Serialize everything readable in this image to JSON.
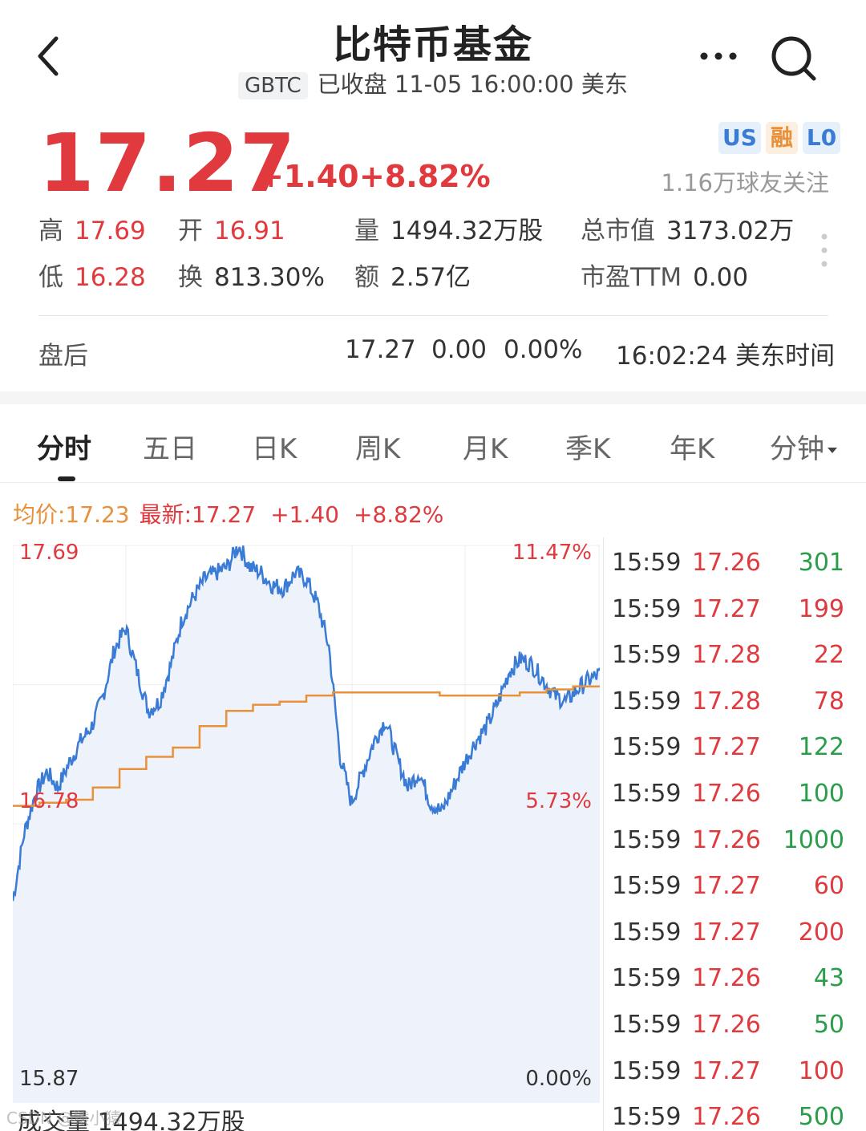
{
  "header": {
    "title": "比特币基金",
    "ticker": "GBTC",
    "status": "已收盘 11-05 16:00:00 美东"
  },
  "quote": {
    "price": "17.27",
    "change": "+1.40",
    "change_pct": "+8.82%",
    "badges": [
      "US",
      "融",
      "L0"
    ],
    "followers": "1.16万球友关注",
    "stats": {
      "high_label": "高",
      "high": "17.69",
      "open_label": "开",
      "open": "16.91",
      "volume_label": "量",
      "volume": "1494.32万股",
      "mktcap_label": "总市值",
      "mktcap": "3173.02万",
      "low_label": "低",
      "low": "16.28",
      "turnover_label": "换",
      "turnover": "813.30%",
      "amount_label": "额",
      "amount": "2.57亿",
      "pe_label": "市盈TTM",
      "pe": "0.00"
    }
  },
  "after_hours": {
    "label": "盘后",
    "price": "17.27",
    "change": "0.00",
    "change_pct": "0.00%",
    "time": "16:02:24 美东时间"
  },
  "tabs": [
    "分时",
    "五日",
    "日K",
    "周K",
    "月K",
    "季K",
    "年K",
    "分钟"
  ],
  "legend": {
    "avg": "均价:17.23",
    "latest_label": "最新:17.27",
    "latest_change": "+1.40",
    "latest_pct": "+8.82%"
  },
  "chart_data": {
    "type": "line",
    "y_labels_left": [
      "17.69",
      "16.78",
      "15.87"
    ],
    "y_labels_right": [
      "11.47%",
      "5.73%",
      "0.00%"
    ],
    "ylim": [
      15.87,
      17.69
    ],
    "series": [
      {
        "values": [
          16.53,
          16.75,
          16.88,
          16.95,
          16.9,
          16.98,
          17.05,
          17.1,
          17.2,
          17.35,
          17.42,
          17.28,
          17.15,
          17.18,
          17.3,
          17.45,
          17.52,
          17.58,
          17.6,
          17.62,
          17.69,
          17.62,
          17.6,
          17.56,
          17.55,
          17.6,
          17.58,
          17.5,
          17.36,
          17.0,
          16.85,
          16.95,
          17.05,
          17.12,
          17.0,
          16.9,
          16.95,
          16.85,
          16.82,
          16.9,
          16.98,
          17.05,
          17.1,
          17.18,
          17.28,
          17.32,
          17.3,
          17.25,
          17.2,
          17.18,
          17.22,
          17.25,
          17.27
        ]
      },
      {
        "values": [
          16.84,
          16.85,
          16.86,
          16.9,
          16.96,
          17.0,
          17.03,
          17.1,
          17.15,
          17.17,
          17.18,
          17.2,
          17.21,
          17.21,
          17.21,
          17.21,
          17.2,
          17.2,
          17.2,
          17.21,
          17.22,
          17.23
        ]
      }
    ]
  },
  "ticks": [
    {
      "time": "15:59",
      "price": "17.26",
      "vol": "301",
      "color": "green"
    },
    {
      "time": "15:59",
      "price": "17.27",
      "vol": "199",
      "color": "red"
    },
    {
      "time": "15:59",
      "price": "17.28",
      "vol": "22",
      "color": "red"
    },
    {
      "time": "15:59",
      "price": "17.28",
      "vol": "78",
      "color": "red"
    },
    {
      "time": "15:59",
      "price": "17.27",
      "vol": "122",
      "color": "green"
    },
    {
      "time": "15:59",
      "price": "17.26",
      "vol": "100",
      "color": "green"
    },
    {
      "time": "15:59",
      "price": "17.26",
      "vol": "1000",
      "color": "green"
    },
    {
      "time": "15:59",
      "price": "17.27",
      "vol": "60",
      "color": "red"
    },
    {
      "time": "15:59",
      "price": "17.27",
      "vol": "200",
      "color": "red"
    },
    {
      "time": "15:59",
      "price": "17.26",
      "vol": "43",
      "color": "green"
    },
    {
      "time": "15:59",
      "price": "17.26",
      "vol": "50",
      "color": "green"
    },
    {
      "time": "15:59",
      "price": "17.27",
      "vol": "100",
      "color": "red"
    },
    {
      "time": "15:59",
      "price": "17.26",
      "vol": "500",
      "color": "green"
    }
  ],
  "volume_line": "成交量 1494.32万股",
  "watermark": "CSDN @猿小猿",
  "colors": {
    "up": "#e0393e",
    "down": "#2a9d4a",
    "price_line": "#3a7bd5",
    "avg_line": "#e8903a"
  }
}
